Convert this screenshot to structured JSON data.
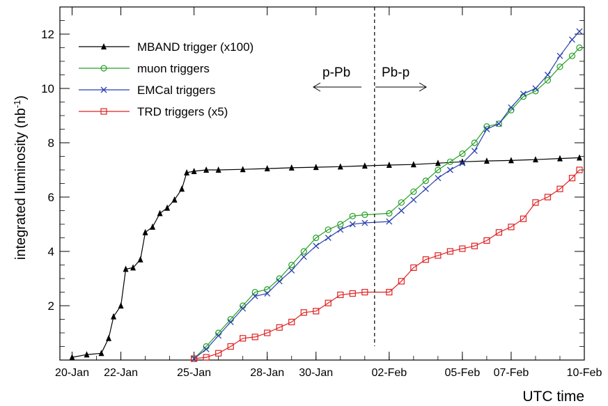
{
  "chart_data": {
    "type": "line",
    "xlabel": "UTC time",
    "ylabel": "integrated luminosity (nb",
    "ylabel_sup": "-1",
    "ylabel_close": ")",
    "x_ticks": [
      {
        "label": "20-Jan",
        "x": 0
      },
      {
        "label": "22-Jan",
        "x": 2
      },
      {
        "label": "25-Jan",
        "x": 5
      },
      {
        "label": "28-Jan",
        "x": 8
      },
      {
        "label": "30-Jan",
        "x": 10
      },
      {
        "label": "02-Feb",
        "x": 13
      },
      {
        "label": "05-Feb",
        "x": 16
      },
      {
        "label": "07-Feb",
        "x": 18
      },
      {
        "label": "10-Feb",
        "x": 21
      }
    ],
    "xlim": [
      -0.5,
      21
    ],
    "ylim": [
      0,
      13
    ],
    "y_ticks": [
      2,
      4,
      6,
      8,
      10,
      12
    ],
    "grid": false,
    "legend_position": "top-left",
    "period_divider_x": 12.4,
    "annotations": [
      {
        "text": "p-Pb",
        "arrow": "left"
      },
      {
        "text": "Pb-p",
        "arrow": "right"
      }
    ],
    "series": [
      {
        "name": "MBAND trigger (x100)",
        "color": "#000000",
        "marker": "triangle",
        "x": [
          0.0,
          0.6,
          1.2,
          1.5,
          1.7,
          2.0,
          2.2,
          2.5,
          2.8,
          3.0,
          3.3,
          3.6,
          3.9,
          4.2,
          4.5,
          4.7,
          5.0,
          5.5,
          6.0,
          7.0,
          8.0,
          9.0,
          10.0,
          11.0,
          12.0,
          13.0,
          14.0,
          15.0,
          16.0,
          17.0,
          18.0,
          19.0,
          20.0,
          20.8
        ],
        "y": [
          0.1,
          0.2,
          0.25,
          0.8,
          1.6,
          2.0,
          3.35,
          3.4,
          3.7,
          4.7,
          4.9,
          5.4,
          5.6,
          5.9,
          6.3,
          6.9,
          6.95,
          7.0,
          7.0,
          7.02,
          7.05,
          7.08,
          7.1,
          7.12,
          7.15,
          7.18,
          7.2,
          7.25,
          7.3,
          7.33,
          7.35,
          7.38,
          7.42,
          7.45
        ]
      },
      {
        "name": "muon triggers",
        "color": "#22a022",
        "marker": "circle",
        "x": [
          5.0,
          5.5,
          6.0,
          6.5,
          7.0,
          7.5,
          8.0,
          8.5,
          9.0,
          9.5,
          10.0,
          10.5,
          11.0,
          11.5,
          12.0,
          13.0,
          13.5,
          14.0,
          14.5,
          15.0,
          15.5,
          16.0,
          16.5,
          17.0,
          17.5,
          18.0,
          18.5,
          19.0,
          19.5,
          20.0,
          20.5,
          20.8
        ],
        "y": [
          0.05,
          0.5,
          1.0,
          1.5,
          2.0,
          2.5,
          2.6,
          3.0,
          3.5,
          4.0,
          4.5,
          4.8,
          5.0,
          5.3,
          5.35,
          5.4,
          5.8,
          6.2,
          6.6,
          7.0,
          7.3,
          7.6,
          8.0,
          8.6,
          8.7,
          9.2,
          9.7,
          9.9,
          10.3,
          10.8,
          11.2,
          11.5
        ]
      },
      {
        "name": "EMCal triggers",
        "color": "#2a3fb0",
        "marker": "x",
        "x": [
          5.0,
          5.5,
          6.0,
          6.5,
          7.0,
          7.5,
          8.0,
          8.5,
          9.0,
          9.5,
          10.0,
          10.5,
          11.0,
          11.5,
          12.0,
          13.0,
          13.5,
          14.0,
          14.5,
          15.0,
          15.5,
          16.0,
          16.5,
          17.0,
          17.5,
          18.0,
          18.5,
          19.0,
          19.5,
          20.0,
          20.5,
          20.8
        ],
        "y": [
          0.05,
          0.4,
          0.9,
          1.4,
          1.9,
          2.35,
          2.45,
          2.9,
          3.3,
          3.8,
          4.2,
          4.5,
          4.8,
          5.0,
          5.05,
          5.1,
          5.5,
          5.9,
          6.3,
          6.7,
          7.0,
          7.25,
          7.7,
          8.5,
          8.7,
          9.3,
          9.8,
          10.0,
          10.5,
          11.2,
          11.8,
          12.1
        ]
      },
      {
        "name": "TRD triggers (x5)",
        "color": "#e02020",
        "marker": "square",
        "x": [
          5.0,
          5.5,
          6.0,
          6.5,
          7.0,
          7.5,
          8.0,
          8.5,
          9.0,
          9.5,
          10.0,
          10.5,
          11.0,
          11.5,
          12.0,
          13.0,
          13.5,
          14.0,
          14.5,
          15.0,
          15.5,
          16.0,
          16.5,
          17.0,
          17.5,
          18.0,
          18.5,
          19.0,
          19.5,
          20.0,
          20.5,
          20.8
        ],
        "y": [
          0.05,
          0.1,
          0.25,
          0.5,
          0.8,
          0.85,
          1.0,
          1.2,
          1.4,
          1.75,
          1.8,
          2.1,
          2.4,
          2.45,
          2.5,
          2.5,
          2.9,
          3.4,
          3.7,
          3.85,
          4.0,
          4.1,
          4.2,
          4.4,
          4.7,
          4.9,
          5.2,
          5.8,
          6.0,
          6.3,
          6.7,
          7.0
        ]
      }
    ]
  }
}
